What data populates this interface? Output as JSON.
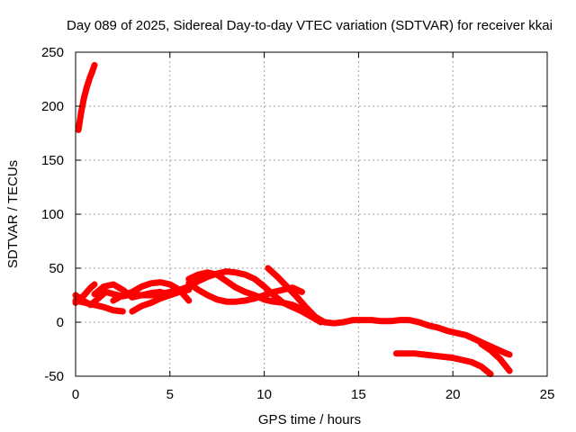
{
  "chart_data": {
    "type": "line",
    "title": "Day 089 of 2025, Sidereal Day-to-day VTEC variation (SDTVAR) for receiver kkai",
    "xlabel": "GPS time / hours",
    "ylabel": "SDTVAR / TECUs",
    "xlim": [
      0,
      25
    ],
    "ylim": [
      -50,
      250
    ],
    "xticks": [
      0,
      5,
      10,
      15,
      20,
      25
    ],
    "yticks": [
      -50,
      0,
      50,
      100,
      150,
      200,
      250
    ],
    "grid": true,
    "legend": "none",
    "series_color": "#ff0000",
    "series": [
      {
        "x": [
          0.15,
          0.3,
          0.45,
          0.6,
          0.75,
          0.9,
          1.0
        ],
        "y": [
          178,
          195,
          208,
          218,
          226,
          233,
          238
        ]
      },
      {
        "x": [
          0.0,
          0.4,
          0.8,
          1.0
        ],
        "y": [
          18,
          24,
          32,
          35
        ]
      },
      {
        "x": [
          0.0,
          0.4,
          0.8,
          1.2,
          1.6,
          2.0,
          2.5,
          3.0,
          3.5,
          4.0,
          4.5,
          5.0,
          5.5,
          6.0
        ],
        "y": [
          25,
          20,
          16,
          22,
          28,
          26,
          24,
          26,
          25,
          25,
          26,
          28,
          30,
          33
        ]
      },
      {
        "x": [
          0.0,
          0.5,
          1.0,
          1.5,
          2.0,
          2.5
        ],
        "y": [
          20,
          18,
          16,
          14,
          11,
          10
        ]
      },
      {
        "x": [
          1.0,
          1.5,
          2.0,
          2.5,
          3.0,
          3.5,
          4.0,
          4.5,
          5.0
        ],
        "y": [
          26,
          33,
          35,
          30,
          23,
          25,
          27,
          28,
          25
        ]
      },
      {
        "x": [
          2.0,
          2.5,
          3.0,
          3.5,
          4.0,
          4.5,
          5.0,
          5.5,
          6.0
        ],
        "y": [
          20,
          25,
          28,
          33,
          36,
          37,
          35,
          30,
          20
        ]
      },
      {
        "x": [
          3.0,
          3.5,
          4.0,
          4.5,
          5.0,
          5.5,
          6.0
        ],
        "y": [
          10,
          15,
          18,
          22,
          25,
          28,
          30
        ]
      },
      {
        "x": [
          6.0,
          6.5,
          7.0,
          7.5,
          8.0,
          8.5,
          9.0,
          9.5,
          10.0,
          10.5,
          11.0,
          11.5,
          12.0,
          12.5,
          13.0
        ],
        "y": [
          33,
          38,
          42,
          45,
          47,
          46,
          44,
          40,
          33,
          25,
          18,
          14,
          10,
          5,
          0
        ]
      },
      {
        "x": [
          6.0,
          6.5,
          7.0,
          7.5,
          8.0,
          8.5,
          9.0,
          9.5,
          10.0,
          10.5,
          11.0,
          11.5,
          12.0,
          12.5
        ],
        "y": [
          40,
          44,
          46,
          44,
          38,
          32,
          28,
          25,
          21,
          19,
          18,
          16,
          12,
          8
        ]
      },
      {
        "x": [
          6.0,
          6.5,
          7.0,
          7.5,
          8.0,
          8.5,
          9.0,
          9.5,
          10.0,
          10.5,
          11.0,
          11.5,
          12.0
        ],
        "y": [
          36,
          30,
          25,
          21,
          19,
          19,
          20,
          22,
          25,
          28,
          30,
          32,
          28
        ]
      },
      {
        "x": [
          10.2,
          10.7,
          11.2,
          11.7,
          12.2,
          12.7,
          13.2,
          13.7,
          14.2,
          14.7,
          15.2,
          15.7,
          16.2,
          16.7,
          17.2,
          17.7,
          18.2,
          18.7,
          19.2,
          19.7,
          20.2,
          20.7,
          21.2,
          21.7,
          22.2,
          22.7,
          23.0
        ],
        "y": [
          50,
          42,
          33,
          24,
          14,
          5,
          0,
          -1,
          0,
          2,
          2,
          2,
          1,
          1,
          2,
          2,
          0,
          -3,
          -5,
          -8,
          -10,
          -12,
          -16,
          -20,
          -24,
          -28,
          -30
        ]
      },
      {
        "x": [
          17.0,
          17.5,
          18.0,
          18.5,
          19.0,
          19.5,
          20.0,
          20.5,
          21.0,
          21.5,
          22.0
        ],
        "y": [
          -29,
          -29,
          -29,
          -30,
          -31,
          -32,
          -33,
          -35,
          -37,
          -41,
          -48
        ]
      },
      {
        "x": [
          21.5,
          22.0,
          22.5,
          23.0
        ],
        "y": [
          -20,
          -26,
          -34,
          -45
        ]
      }
    ]
  }
}
